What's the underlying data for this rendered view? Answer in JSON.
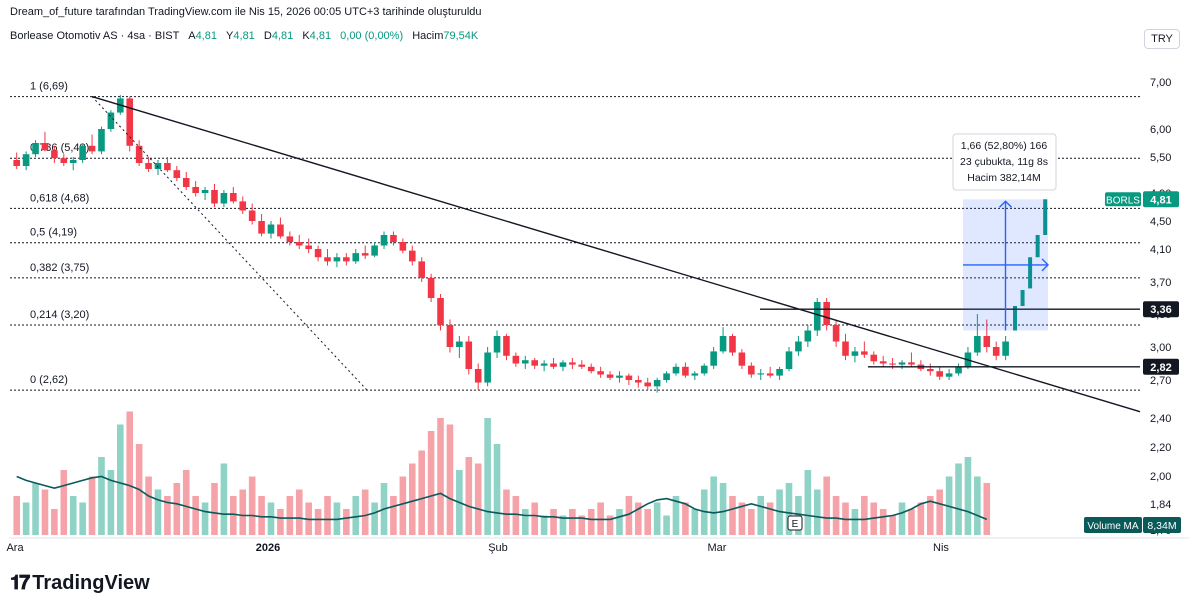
{
  "creator_line": "Dream_of_future tarafından TradingView.com ile Nis 15, 2026 00:05 UTC+3 tarihinde oluşturuldu",
  "header": {
    "symbol": "Borlease Otomotiv AS · 4sa · BIST",
    "open_label": "A",
    "open": "4,81",
    "high_label": "Y",
    "high": "4,81",
    "low_label": "D",
    "low": "4,81",
    "close_label": "K",
    "close": "4,81",
    "change": "0,00 (0,00%)",
    "volume_label": "Hacim",
    "volume": "79,54K"
  },
  "currency": "TRY",
  "brand": "TradingView",
  "measure_box": {
    "line1": "1,66 (52,80%) 166",
    "line2": "23 çubukta, 11g 8s",
    "line3": "Hacim 382,14M"
  },
  "colors": {
    "up": "#089981",
    "down": "#f23645",
    "up_vol": "#8fd2c6",
    "down_vol": "#f5a3a9",
    "ma": "#0b5a5a",
    "measure": "#2962ff"
  },
  "chart_data": {
    "type": "candlestick",
    "x_tick_labels": [
      "Ara",
      "2026",
      "Şub",
      "Mar",
      "Nis"
    ],
    "y_tick_labels": [
      "7,00",
      "6,00",
      "5,50",
      "4,90",
      "4,50",
      "4,10",
      "3,70",
      "3,30",
      "3,00",
      "2,70",
      "2,40",
      "2,20",
      "2,00",
      "1,84",
      "1,70"
    ],
    "y_tick_values": [
      7.0,
      6.0,
      5.5,
      4.9,
      4.5,
      4.1,
      3.7,
      3.3,
      3.0,
      2.7,
      2.4,
      2.2,
      2.0,
      1.84,
      1.7
    ],
    "fib_levels": [
      {
        "label": "1 (6,69)",
        "value": 6.69
      },
      {
        "label": "0,786 (5,48)",
        "value": 5.48
      },
      {
        "label": "0,618 (4,68)",
        "value": 4.68
      },
      {
        "label": "0,5 (4,19)",
        "value": 4.19
      },
      {
        "label": "0,382 (3,75)",
        "value": 3.75
      },
      {
        "label": "0,214 (3,20)",
        "value": 3.2
      },
      {
        "label": "0 (2,62)",
        "value": 2.62
      }
    ],
    "price_tags": [
      {
        "label": "BORLS",
        "value": "4,81",
        "price": 4.81
      },
      {
        "label": "",
        "value": "3,36",
        "price": 3.36
      },
      {
        "label": "",
        "value": "2,82",
        "price": 2.82
      }
    ],
    "volume_tag": {
      "label": "Volume MA",
      "value": "8,34M"
    },
    "marker": "E",
    "candles": [
      [
        5.45,
        5.58,
        5.3,
        5.35
      ],
      [
        5.35,
        5.6,
        5.28,
        5.55
      ],
      [
        5.55,
        5.8,
        5.5,
        5.75
      ],
      [
        5.75,
        5.95,
        5.6,
        5.62
      ],
      [
        5.62,
        5.7,
        5.4,
        5.48
      ],
      [
        5.48,
        5.55,
        5.35,
        5.4
      ],
      [
        5.4,
        5.5,
        5.28,
        5.45
      ],
      [
        5.45,
        5.72,
        5.4,
        5.7
      ],
      [
        5.7,
        5.9,
        5.55,
        5.6
      ],
      [
        5.6,
        6.05,
        5.55,
        6.0
      ],
      [
        6.0,
        6.4,
        5.95,
        6.35
      ],
      [
        6.35,
        6.72,
        6.3,
        6.65
      ],
      [
        6.65,
        6.69,
        5.6,
        5.7
      ],
      [
        5.7,
        5.8,
        5.35,
        5.4
      ],
      [
        5.4,
        5.5,
        5.25,
        5.3
      ],
      [
        5.3,
        5.45,
        5.2,
        5.4
      ],
      [
        5.4,
        5.5,
        5.25,
        5.28
      ],
      [
        5.28,
        5.35,
        5.1,
        5.15
      ],
      [
        5.15,
        5.25,
        4.95,
        5.0
      ],
      [
        5.0,
        5.1,
        4.85,
        4.9
      ],
      [
        4.9,
        5.0,
        4.8,
        4.95
      ],
      [
        4.95,
        5.05,
        4.7,
        4.75
      ],
      [
        4.75,
        4.95,
        4.7,
        4.9
      ],
      [
        4.9,
        5.0,
        4.75,
        4.78
      ],
      [
        4.78,
        4.85,
        4.6,
        4.65
      ],
      [
        4.65,
        4.75,
        4.45,
        4.5
      ],
      [
        4.5,
        4.6,
        4.28,
        4.32
      ],
      [
        4.32,
        4.5,
        4.25,
        4.45
      ],
      [
        4.45,
        4.55,
        4.25,
        4.28
      ],
      [
        4.28,
        4.35,
        4.15,
        4.2
      ],
      [
        4.2,
        4.3,
        4.1,
        4.15
      ],
      [
        4.15,
        4.25,
        4.05,
        4.1
      ],
      [
        4.1,
        4.15,
        3.95,
        4.0
      ],
      [
        4.0,
        4.1,
        3.9,
        3.95
      ],
      [
        3.95,
        4.05,
        3.88,
        4.0
      ],
      [
        4.0,
        4.05,
        3.9,
        3.95
      ],
      [
        3.95,
        4.1,
        3.92,
        4.05
      ],
      [
        4.05,
        4.15,
        3.98,
        4.02
      ],
      [
        4.02,
        4.2,
        4.0,
        4.15
      ],
      [
        4.15,
        4.35,
        4.1,
        4.3
      ],
      [
        4.3,
        4.35,
        4.15,
        4.2
      ],
      [
        4.2,
        4.25,
        4.05,
        4.08
      ],
      [
        4.08,
        4.15,
        3.9,
        3.95
      ],
      [
        3.95,
        4.0,
        3.7,
        3.75
      ],
      [
        3.75,
        3.8,
        3.45,
        3.5
      ],
      [
        3.5,
        3.55,
        3.15,
        3.2
      ],
      [
        3.2,
        3.25,
        2.95,
        3.0
      ],
      [
        3.0,
        3.1,
        2.9,
        3.05
      ],
      [
        3.05,
        3.1,
        2.75,
        2.8
      ],
      [
        2.8,
        2.85,
        2.62,
        2.68
      ],
      [
        2.68,
        3.0,
        2.65,
        2.95
      ],
      [
        2.95,
        3.15,
        2.9,
        3.1
      ],
      [
        3.1,
        3.12,
        2.88,
        2.92
      ],
      [
        2.92,
        2.95,
        2.82,
        2.85
      ],
      [
        2.85,
        2.92,
        2.8,
        2.88
      ],
      [
        2.88,
        2.9,
        2.8,
        2.83
      ],
      [
        2.83,
        2.88,
        2.78,
        2.85
      ],
      [
        2.85,
        2.9,
        2.8,
        2.82
      ],
      [
        2.82,
        2.88,
        2.78,
        2.86
      ],
      [
        2.86,
        2.9,
        2.8,
        2.84
      ],
      [
        2.84,
        2.88,
        2.8,
        2.82
      ],
      [
        2.82,
        2.85,
        2.76,
        2.78
      ],
      [
        2.78,
        2.82,
        2.72,
        2.75
      ],
      [
        2.75,
        2.78,
        2.7,
        2.72
      ],
      [
        2.72,
        2.78,
        2.68,
        2.74
      ],
      [
        2.74,
        2.76,
        2.66,
        2.7
      ],
      [
        2.7,
        2.74,
        2.64,
        2.68
      ],
      [
        2.68,
        2.72,
        2.62,
        2.65
      ],
      [
        2.65,
        2.72,
        2.6,
        2.7
      ],
      [
        2.7,
        2.78,
        2.68,
        2.76
      ],
      [
        2.76,
        2.85,
        2.74,
        2.82
      ],
      [
        2.82,
        2.86,
        2.72,
        2.74
      ],
      [
        2.74,
        2.78,
        2.7,
        2.76
      ],
      [
        2.76,
        2.85,
        2.74,
        2.83
      ],
      [
        2.83,
        3.0,
        2.8,
        2.96
      ],
      [
        2.96,
        3.18,
        2.94,
        3.1
      ],
      [
        3.1,
        3.12,
        2.92,
        2.95
      ],
      [
        2.95,
        2.98,
        2.8,
        2.83
      ],
      [
        2.83,
        2.86,
        2.72,
        2.75
      ],
      [
        2.75,
        2.8,
        2.7,
        2.76
      ],
      [
        2.76,
        2.82,
        2.72,
        2.74
      ],
      [
        2.74,
        2.82,
        2.7,
        2.8
      ],
      [
        2.8,
        3.0,
        2.78,
        2.96
      ],
      [
        2.96,
        3.1,
        2.92,
        3.05
      ],
      [
        3.05,
        3.2,
        3.0,
        3.15
      ],
      [
        3.15,
        3.5,
        3.1,
        3.45
      ],
      [
        3.45,
        3.5,
        3.15,
        3.2
      ],
      [
        3.2,
        3.25,
        3.0,
        3.05
      ],
      [
        3.05,
        3.12,
        2.88,
        2.92
      ],
      [
        2.92,
        3.0,
        2.86,
        2.96
      ],
      [
        2.96,
        3.05,
        2.9,
        2.93
      ],
      [
        2.93,
        2.96,
        2.84,
        2.87
      ],
      [
        2.87,
        2.92,
        2.82,
        2.85
      ],
      [
        2.85,
        2.9,
        2.8,
        2.84
      ],
      [
        2.84,
        2.88,
        2.8,
        2.86
      ],
      [
        2.86,
        2.95,
        2.82,
        2.84
      ],
      [
        2.84,
        2.88,
        2.78,
        2.8
      ],
      [
        2.8,
        2.85,
        2.74,
        2.78
      ],
      [
        2.78,
        2.82,
        2.7,
        2.73
      ],
      [
        2.73,
        2.8,
        2.7,
        2.76
      ],
      [
        2.76,
        2.85,
        2.74,
        2.82
      ],
      [
        2.82,
        3.0,
        2.8,
        2.95
      ],
      [
        2.95,
        3.3,
        2.92,
        3.1
      ],
      [
        3.1,
        3.25,
        2.95,
        3.0
      ],
      [
        3.0,
        3.05,
        2.88,
        2.92
      ],
      [
        2.92,
        3.1,
        2.88,
        3.05
      ]
    ],
    "tail_ticks": [
      [
        3.15,
        3.4
      ],
      [
        3.4,
        3.6
      ],
      [
        3.62,
        4.0
      ],
      [
        4.0,
        4.3
      ],
      [
        4.3,
        4.81
      ]
    ],
    "volume_rel": [
      0.3,
      0.25,
      0.4,
      0.35,
      0.2,
      0.5,
      0.3,
      0.25,
      0.45,
      0.6,
      0.5,
      0.85,
      0.95,
      0.7,
      0.45,
      0.35,
      0.3,
      0.4,
      0.5,
      0.3,
      0.25,
      0.4,
      0.55,
      0.3,
      0.35,
      0.45,
      0.3,
      0.25,
      0.2,
      0.3,
      0.35,
      0.25,
      0.2,
      0.3,
      0.25,
      0.2,
      0.3,
      0.35,
      0.25,
      0.4,
      0.3,
      0.45,
      0.55,
      0.65,
      0.8,
      0.9,
      0.85,
      0.5,
      0.6,
      0.55,
      0.9,
      0.7,
      0.35,
      0.3,
      0.2,
      0.25,
      0.15,
      0.2,
      0.15,
      0.2,
      0.15,
      0.2,
      0.25,
      0.15,
      0.2,
      0.3,
      0.25,
      0.2,
      0.25,
      0.15,
      0.3,
      0.25,
      0.2,
      0.35,
      0.45,
      0.4,
      0.3,
      0.25,
      0.2,
      0.3,
      0.25,
      0.35,
      0.4,
      0.3,
      0.5,
      0.35,
      0.45,
      0.3,
      0.25,
      0.2,
      0.3,
      0.25,
      0.2,
      0.15,
      0.25,
      0.2,
      0.25,
      0.3,
      0.35,
      0.45,
      0.55,
      0.6,
      0.45,
      0.4
    ],
    "volume_ma_rel": [
      0.45,
      0.42,
      0.4,
      0.38,
      0.36,
      0.38,
      0.4,
      0.42,
      0.44,
      0.45,
      0.42,
      0.4,
      0.38,
      0.35,
      0.3,
      0.27,
      0.25,
      0.24,
      0.22,
      0.2,
      0.18,
      0.17,
      0.16,
      0.16,
      0.15,
      0.15,
      0.14,
      0.14,
      0.13,
      0.13,
      0.13,
      0.12,
      0.12,
      0.12,
      0.12,
      0.13,
      0.14,
      0.15,
      0.17,
      0.2,
      0.22,
      0.24,
      0.26,
      0.28,
      0.3,
      0.32,
      0.28,
      0.25,
      0.22,
      0.2,
      0.18,
      0.17,
      0.16,
      0.16,
      0.15,
      0.15,
      0.14,
      0.14,
      0.13,
      0.13,
      0.13,
      0.12,
      0.12,
      0.12,
      0.14,
      0.16,
      0.2,
      0.24,
      0.27,
      0.28,
      0.26,
      0.24,
      0.2,
      0.18,
      0.17,
      0.18,
      0.2,
      0.22,
      0.24,
      0.22,
      0.2,
      0.18,
      0.17,
      0.16,
      0.15,
      0.14,
      0.13,
      0.13,
      0.12,
      0.12,
      0.12,
      0.13,
      0.14,
      0.15,
      0.17,
      0.2,
      0.24,
      0.26,
      0.24,
      0.22,
      0.2,
      0.18,
      0.15,
      0.12
    ]
  }
}
